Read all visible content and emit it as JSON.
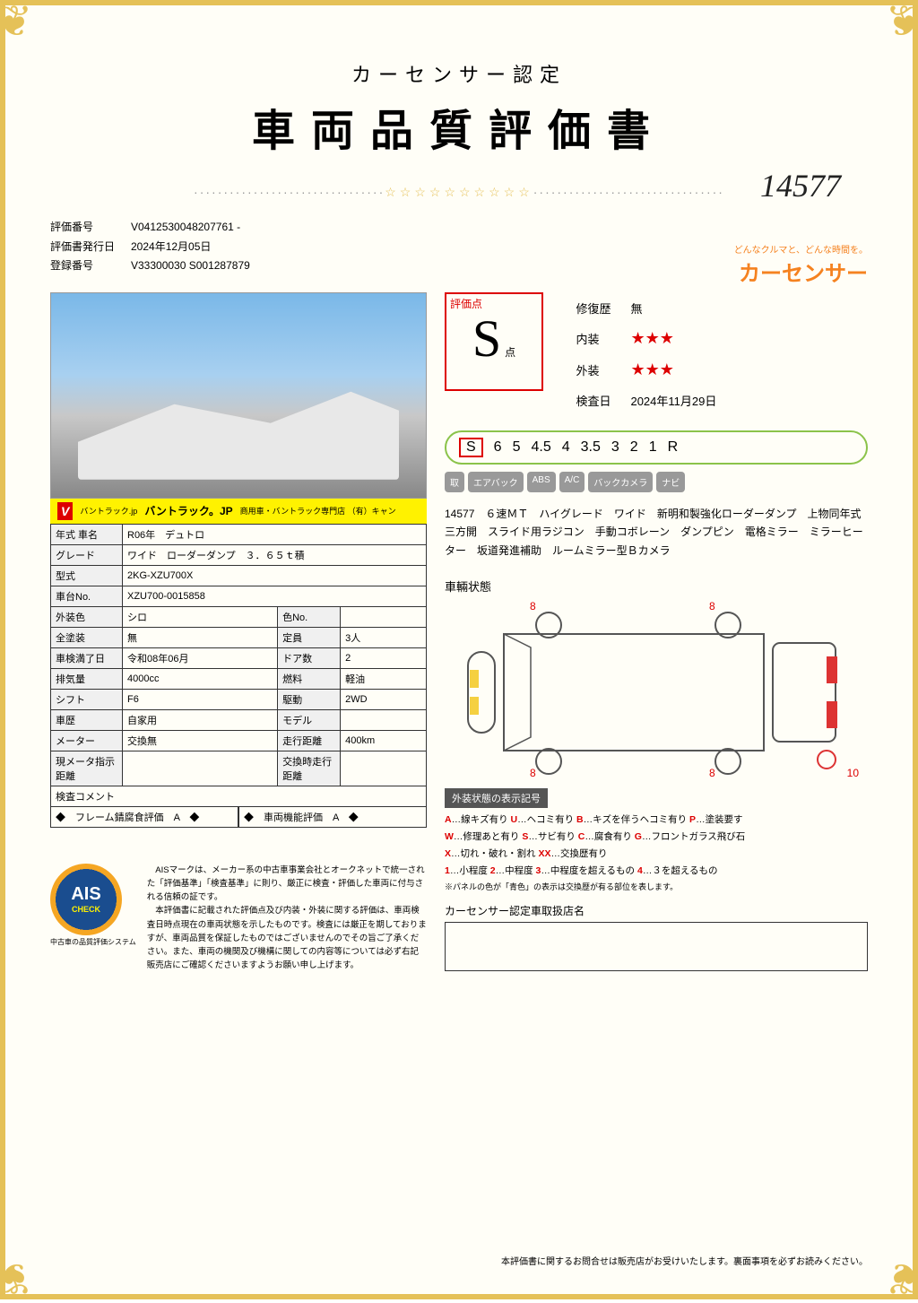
{
  "header": {
    "sub": "カーセンサー認定",
    "main": "車両品質評価書"
  },
  "handwritten_id": "14577",
  "divider_stars": "☆☆☆☆☆☆☆☆☆☆",
  "brand": {
    "sub": "どんなクルマと、どんな時間を。",
    "main": "カーセンサー"
  },
  "meta": {
    "eval_no_label": "評価番号",
    "eval_no": "V0412530048207761",
    "issue_label": "評価書発行日",
    "issue": "2024年12月05日",
    "reg_label": "登録番号",
    "reg": "V33300030 S001287879"
  },
  "banner": {
    "logo": "VAN TRUCK.jp",
    "small": "バントラック.jp",
    "title": "バントラック。JP",
    "sub": "商用車・バントラック専門店 （有）キャン"
  },
  "spec": {
    "rows": [
      {
        "k1": "年式 車名",
        "v1": "R06年　デュトロ"
      },
      {
        "k1": "グレード",
        "v1": "ワイド　ローダーダンプ　３．６５ｔ積"
      },
      {
        "k1": "型式",
        "v1": "2KG-XZU700X"
      },
      {
        "k1": "車台No.",
        "v1": "XZU700-0015858"
      },
      {
        "k1": "外装色",
        "v1": "シロ",
        "k2": "色No.",
        "v2": ""
      },
      {
        "k1": "全塗装",
        "v1": "無",
        "k2": "定員",
        "v2": "3人"
      },
      {
        "k1": "車検満了日",
        "v1": "令和08年06月",
        "k2": "ドア数",
        "v2": "2"
      },
      {
        "k1": "排気量",
        "v1": "4000cc",
        "k2": "燃料",
        "v2": "軽油"
      },
      {
        "k1": "シフト",
        "v1": "F6",
        "k2": "駆動",
        "v2": "2WD"
      },
      {
        "k1": "車歴",
        "v1": "自家用",
        "k2": "モデル",
        "v2": ""
      },
      {
        "k1": "メーター",
        "v1": "交換無",
        "k2": "走行距離",
        "v2": "400km"
      },
      {
        "k1": "現メータ指示距離",
        "v1": "",
        "k2": "交換時走行距離",
        "v2": ""
      }
    ],
    "comment_label": "検査コメント",
    "frame_label": "◆　フレーム錆腐食評価　A　◆",
    "func_label": "◆　車両機能評価　A　◆"
  },
  "score": {
    "label": "評価点",
    "grade": "S",
    "unit": "点",
    "info": [
      {
        "k": "修復歴",
        "v": "無"
      },
      {
        "k": "内装",
        "stars": 3
      },
      {
        "k": "外装",
        "stars": 3
      },
      {
        "k": "検査日",
        "v": "2024年11月29日"
      }
    ],
    "scale": [
      "S",
      "6",
      "5",
      "4.5",
      "4",
      "3.5",
      "3",
      "2",
      "1",
      "R"
    ],
    "features": [
      "取",
      "エアバック",
      "ABS",
      "A/C",
      "バックカメラ",
      "ナビ"
    ]
  },
  "description": "14577　６速ＭＴ　ハイグレード　ワイド　新明和製強化ローダーダンプ　上物同年式　三方開　スライド用ラジコン　手動コボレーン　ダンプピン　電格ミラー　ミラーヒーター　坂道発進補助　ルームミラー型Ｂカメラ",
  "vehicle_state": {
    "title": "車輛状態",
    "markers": [
      "8",
      "8",
      "8",
      "8",
      "10"
    ]
  },
  "legend": {
    "title": "外装状態の表示記号",
    "lines": [
      [
        {
          "c": "A",
          "t": "…線キズ有り"
        },
        {
          "c": "U",
          "t": "…ヘコミ有り"
        },
        {
          "c": "B",
          "t": "…キズを伴うヘコミ有り"
        },
        {
          "c": "P",
          "t": "…塗装要す"
        }
      ],
      [
        {
          "c": "W",
          "t": "…修理あと有り"
        },
        {
          "c": "S",
          "t": "…サビ有り"
        },
        {
          "c": "C",
          "t": "…腐食有り"
        },
        {
          "c": "G",
          "t": "…フロントガラス飛び石"
        }
      ],
      [
        {
          "c": "X",
          "t": "…切れ・破れ・割れ"
        },
        {
          "c": "XX",
          "t": "…交換歴有り"
        }
      ],
      [
        {
          "c": "1",
          "t": "…小程度"
        },
        {
          "c": "2",
          "t": "…中程度"
        },
        {
          "c": "3",
          "t": "…中程度を超えるもの"
        },
        {
          "c": "4",
          "t": "…３を超えるもの"
        }
      ]
    ],
    "note": "※パネルの色が「青色」の表示は交換歴が有る部位を表します。"
  },
  "dealer": {
    "title": "カーセンサー認定車取扱店名"
  },
  "ais": {
    "badge": "AIS",
    "check": "CHECK",
    "sub": "中古車の品質評価システム",
    "text": "　AISマークは、メーカー系の中古車事業会社とオークネットで統一された「評価基準」「検査基準」に則り、厳正に検査・評価した車両に付与される信頼の証です。\n　本評価書に記載された評価点及び内装・外装に関する評価は、車両検査日時点現在の車両状態を示したものです。検査には厳正を期しておりますが、車両品質を保証したものではございませんのでその旨ご了承ください。また、車両の機関及び機構に関しての内容等については必ず右記販売店にご確認くださいますようお願い申し上げます。"
  },
  "footer": "本評価書に関するお問合せは販売店がお受けいたします。裏面事項を必ずお読みください。"
}
